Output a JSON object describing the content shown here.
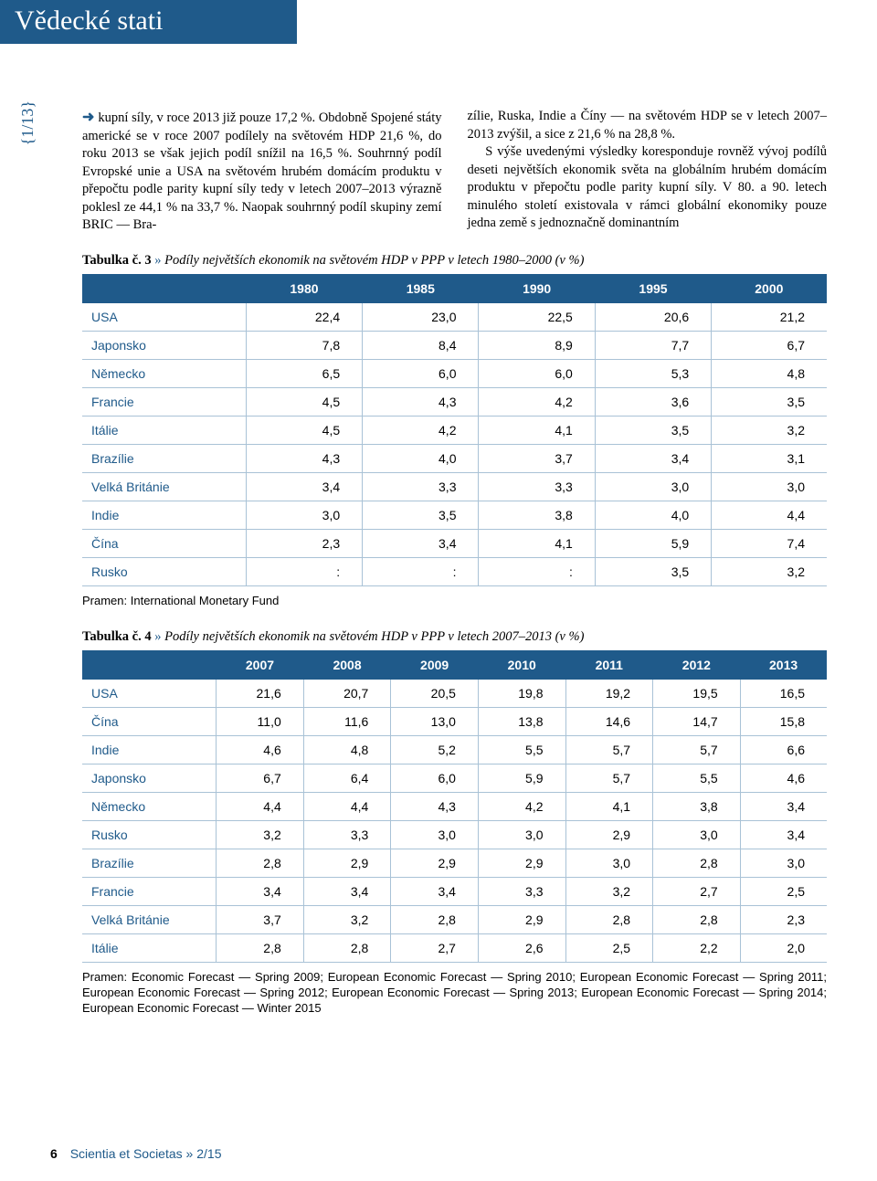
{
  "header": {
    "title": "Vědecké stati"
  },
  "side_badge": "{1/13}",
  "paragraph": {
    "left": "kupní síly, v roce 2013 již pouze 17,2 %. Obdobně Spojené státy americké se v roce 2007 podílely na světovém HDP 21,6 %, do roku 2013 se však jejich podíl snížil na 16,5 %. Souhrnný podíl Evropské unie a USA na světovém hrubém domácím produktu v přepočtu podle parity kupní síly tedy v letech 2007–2013 výrazně poklesl ze 44,1 % na 33,7 %. Naopak souhrnný podíl skupiny zemí BRIC — Bra-",
    "right": "zílie, Ruska, Indie a Číny — na světovém HDP se v letech 2007–2013 zvýšil, a sice z 21,6 % na 28,8 %.\n    S výše uvedenými výsledky koresponduje rovněž vývoj podílů deseti největších ekonomik světa na globálním hrubém domácím produktu v přepočtu podle parity kupní síly. V 80. a 90. letech minulého století existovala v rámci globální ekonomiky pouze jedna země s jednoznačně dominantním"
  },
  "table3": {
    "caption_bold": "Tabulka č. 3",
    "caption_arrow": "»",
    "caption_italic": "Podíly největších ekonomik na světovém HDP v PPP v letech 1980–2000 (v %)",
    "columns": [
      "",
      "1980",
      "1985",
      "1990",
      "1995",
      "2000"
    ],
    "rows": [
      [
        "USA",
        "22,4",
        "23,0",
        "22,5",
        "20,6",
        "21,2"
      ],
      [
        "Japonsko",
        "7,8",
        "8,4",
        "8,9",
        "7,7",
        "6,7"
      ],
      [
        "Německo",
        "6,5",
        "6,0",
        "6,0",
        "5,3",
        "4,8"
      ],
      [
        "Francie",
        "4,5",
        "4,3",
        "4,2",
        "3,6",
        "3,5"
      ],
      [
        "Itálie",
        "4,5",
        "4,2",
        "4,1",
        "3,5",
        "3,2"
      ],
      [
        "Brazílie",
        "4,3",
        "4,0",
        "3,7",
        "3,4",
        "3,1"
      ],
      [
        "Velká Británie",
        "3,4",
        "3,3",
        "3,3",
        "3,0",
        "3,0"
      ],
      [
        "Indie",
        "3,0",
        "3,5",
        "3,8",
        "4,0",
        "4,4"
      ],
      [
        "Čína",
        "2,3",
        "3,4",
        "4,1",
        "5,9",
        "7,4"
      ],
      [
        "Rusko",
        ":",
        ":",
        ":",
        "3,5",
        "3,2"
      ]
    ],
    "source": "Pramen: International Monetary Fund"
  },
  "table4": {
    "caption_bold": "Tabulka č. 4",
    "caption_arrow": "»",
    "caption_italic": "Podíly největších ekonomik na světovém HDP v PPP v letech 2007–2013 (v %)",
    "columns": [
      "",
      "2007",
      "2008",
      "2009",
      "2010",
      "2011",
      "2012",
      "2013"
    ],
    "rows": [
      [
        "USA",
        "21,6",
        "20,7",
        "20,5",
        "19,8",
        "19,2",
        "19,5",
        "16,5"
      ],
      [
        "Čína",
        "11,0",
        "11,6",
        "13,0",
        "13,8",
        "14,6",
        "14,7",
        "15,8"
      ],
      [
        "Indie",
        "4,6",
        "4,8",
        "5,2",
        "5,5",
        "5,7",
        "5,7",
        "6,6"
      ],
      [
        "Japonsko",
        "6,7",
        "6,4",
        "6,0",
        "5,9",
        "5,7",
        "5,5",
        "4,6"
      ],
      [
        "Německo",
        "4,4",
        "4,4",
        "4,3",
        "4,2",
        "4,1",
        "3,8",
        "3,4"
      ],
      [
        "Rusko",
        "3,2",
        "3,3",
        "3,0",
        "3,0",
        "2,9",
        "3,0",
        "3,4"
      ],
      [
        "Brazílie",
        "2,8",
        "2,9",
        "2,9",
        "2,9",
        "3,0",
        "2,8",
        "3,0"
      ],
      [
        "Francie",
        "3,4",
        "3,4",
        "3,4",
        "3,3",
        "3,2",
        "2,7",
        "2,5"
      ],
      [
        "Velká Británie",
        "3,7",
        "3,2",
        "2,8",
        "2,9",
        "2,8",
        "2,8",
        "2,3"
      ],
      [
        "Itálie",
        "2,8",
        "2,8",
        "2,7",
        "2,6",
        "2,5",
        "2,2",
        "2,0"
      ]
    ],
    "source": "Pramen: Economic Forecast — Spring 2009; European Economic Forecast — Spring 2010; European Economic Forecast — Spring 2011; European Economic Forecast — Spring 2012; European Economic Forecast — Spring 2013; European Economic Forecast — Spring 2014; European Economic Forecast — Winter 2015"
  },
  "footer": {
    "page_number": "6",
    "journal": "Scientia et Societas",
    "arrow": "»",
    "issue": "2/15"
  },
  "colors": {
    "brand": "#1f5a8a",
    "rule": "#a9c2d6",
    "white": "#ffffff",
    "black": "#000000"
  }
}
